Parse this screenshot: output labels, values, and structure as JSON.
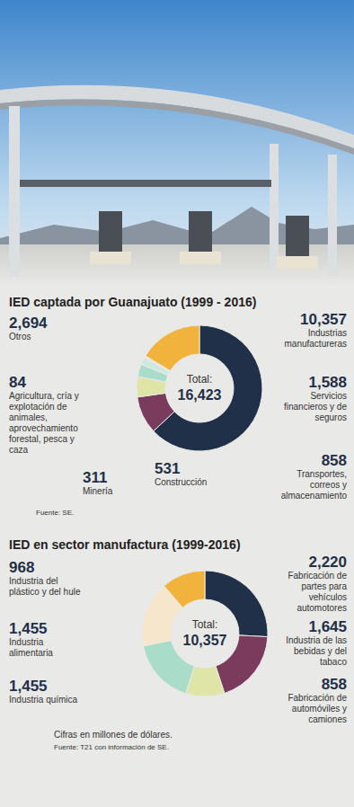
{
  "chart_data": [
    {
      "type": "pie",
      "title": "IED captada por Guanajuato (1999 - 2016)",
      "center_label": "Total:",
      "total": {
        "value": 16423,
        "label": "16,423"
      },
      "categories": [
        "Industrias manufactureras",
        "Servicios financieros y de seguros",
        "Transportes, correos y almacenamiento",
        "Construcción",
        "Minería",
        "Agricultura, cría y explotación de animales, aprovechamiento forestal, pesca y caza",
        "Otros"
      ],
      "values": [
        10357,
        1588,
        858,
        531,
        311,
        84,
        2694
      ],
      "value_labels": [
        "10,357",
        "1,588",
        "858",
        "531",
        "311",
        "84",
        "2,694"
      ],
      "colors": [
        "#1f3048",
        "#7b3b5c",
        "#dfe5a6",
        "#a9dcc9",
        "#cfe9e2",
        "#f6e7cc",
        "#f2b33d"
      ],
      "data_labels": true,
      "notes": [
        "Fuente: SE."
      ]
    },
    {
      "type": "pie",
      "title": "IED en sector manufactura (1999-2016)",
      "center_label": "Total:",
      "total": {
        "value": 10357,
        "label": "10,357"
      },
      "categories": [
        "Fabricación de partes para vehículos automotores",
        "Industria de las bebidas y del tabaco",
        "Fabricación de automóviles y camiones",
        "Industria química",
        "Industria alimentaria",
        "Industria del plástico y del hule"
      ],
      "values": [
        2220,
        1645,
        858,
        1455,
        1455,
        968
      ],
      "value_labels": [
        "2,220",
        "1,645",
        "858",
        "1,455",
        "1,455",
        "968"
      ],
      "colors": [
        "#1f3048",
        "#7b3b5c",
        "#dfe5a6",
        "#a9dcc9",
        "#f6e7cc",
        "#f2b33d"
      ],
      "data_labels": true,
      "notes": [
        "Cifras en millones de dólares.",
        "Fuente: T21 con información de SE."
      ]
    }
  ]
}
